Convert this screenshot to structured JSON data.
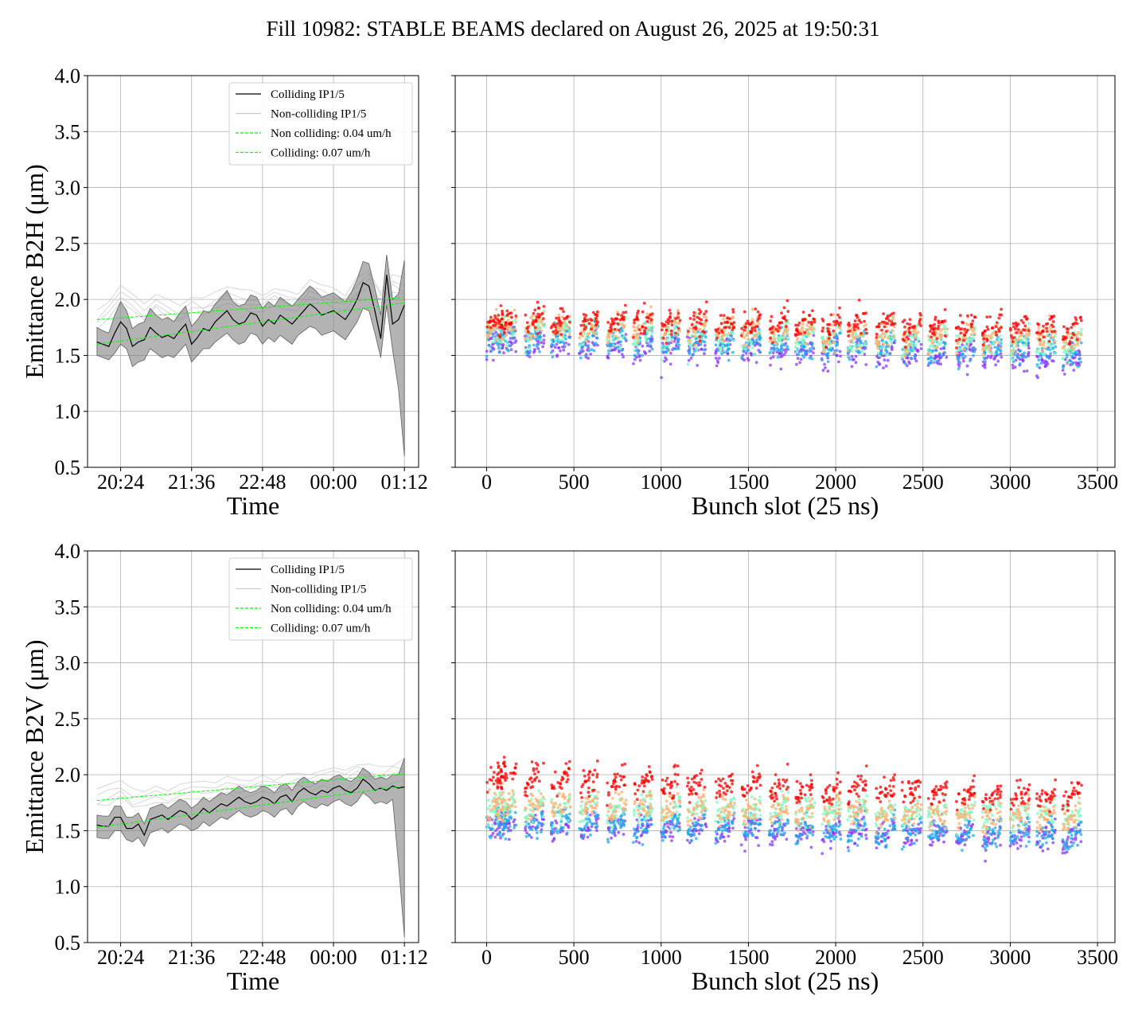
{
  "figure": {
    "title": "Fill 10982: STABLE BEAMS declared on August 26, 2025 at 19:50:31"
  },
  "chart_data": [
    {
      "type": "line",
      "panel": "top-left",
      "xlabel": "Time",
      "ylabel": "Emittance B2H (μm)",
      "xticks": [
        "20:24",
        "21:36",
        "22:48",
        "00:00",
        "01:12"
      ],
      "xtick_hours": [
        20.4,
        21.6,
        22.8,
        24.0,
        25.2
      ],
      "xlim_hours": [
        19.84,
        25.44
      ],
      "ylim": [
        0.5,
        4.0
      ],
      "yticks": [
        0.5,
        1.0,
        1.5,
        2.0,
        2.5,
        3.0,
        3.5,
        4.0
      ],
      "grid": true,
      "legend": {
        "placement": "upper right",
        "entries": [
          {
            "label": "Colliding IP1/5",
            "color": "#000000",
            "style": "solid"
          },
          {
            "label": "Non-colliding IP1/5",
            "color": "#cccccc",
            "style": "solid"
          },
          {
            "label": "Non colliding: 0.04 um/h",
            "color": "#00ff00",
            "style": "dashed"
          },
          {
            "label": "Colliding: 0.07 um/h",
            "color": "#00ff00",
            "style": "dashed"
          }
        ]
      },
      "series": [
        {
          "name": "Colliding IP1/5",
          "x_hours": [
            20.0,
            20.1,
            20.2,
            20.3,
            20.4,
            20.5,
            20.6,
            20.7,
            20.8,
            20.9,
            21.0,
            21.1,
            21.2,
            21.3,
            21.4,
            21.5,
            21.6,
            21.7,
            21.8,
            21.9,
            22.0,
            22.1,
            22.2,
            22.3,
            22.4,
            22.5,
            22.6,
            22.7,
            22.8,
            22.9,
            23.0,
            23.1,
            23.2,
            23.3,
            23.4,
            23.5,
            23.6,
            23.7,
            23.8,
            23.9,
            24.0,
            24.1,
            24.2,
            24.3,
            24.4,
            24.5,
            24.6,
            24.7,
            24.8,
            24.9,
            25.0,
            25.1,
            25.2
          ],
          "values": [
            1.62,
            1.6,
            1.58,
            1.7,
            1.8,
            1.74,
            1.58,
            1.62,
            1.64,
            1.75,
            1.7,
            1.66,
            1.68,
            1.65,
            1.72,
            1.78,
            1.6,
            1.66,
            1.74,
            1.72,
            1.8,
            1.85,
            1.9,
            1.82,
            1.78,
            1.8,
            1.88,
            1.86,
            1.76,
            1.82,
            1.78,
            1.86,
            1.82,
            1.78,
            1.84,
            1.9,
            1.96,
            1.92,
            1.86,
            1.88,
            1.9,
            1.86,
            1.82,
            1.9,
            2.0,
            2.15,
            2.12,
            1.9,
            1.65,
            2.22,
            1.78,
            1.82,
            1.95
          ],
          "band_lower": [
            1.5,
            1.48,
            1.46,
            1.52,
            1.6,
            1.56,
            1.4,
            1.44,
            1.46,
            1.56,
            1.52,
            1.48,
            1.5,
            1.48,
            1.54,
            1.6,
            1.44,
            1.5,
            1.56,
            1.56,
            1.62,
            1.66,
            1.7,
            1.64,
            1.6,
            1.62,
            1.7,
            1.68,
            1.6,
            1.66,
            1.62,
            1.68,
            1.64,
            1.6,
            1.68,
            1.72,
            1.76,
            1.74,
            1.68,
            1.7,
            1.72,
            1.68,
            1.64,
            1.72,
            1.8,
            1.92,
            1.9,
            1.7,
            1.48,
            1.95,
            1.55,
            1.2,
            0.6
          ],
          "band_upper": [
            1.75,
            1.72,
            1.7,
            1.86,
            1.98,
            1.9,
            1.74,
            1.78,
            1.8,
            1.92,
            1.86,
            1.82,
            1.84,
            1.8,
            1.88,
            1.94,
            1.76,
            1.82,
            1.9,
            1.88,
            1.96,
            2.02,
            2.08,
            1.98,
            1.94,
            1.96,
            2.04,
            2.02,
            1.92,
            1.98,
            1.94,
            2.02,
            1.98,
            1.94,
            2.0,
            2.06,
            2.12,
            2.08,
            2.02,
            2.04,
            2.06,
            2.02,
            1.98,
            2.06,
            2.18,
            2.34,
            2.32,
            2.1,
            1.86,
            2.4,
            2.0,
            2.05,
            2.35
          ]
        },
        {
          "name": "Non-colliding IP1/5",
          "x_hours": [
            20.0,
            20.2,
            20.4,
            20.6,
            20.8,
            21.0,
            21.2,
            21.4,
            21.6,
            21.8,
            22.0,
            22.2,
            22.4,
            22.6,
            22.8,
            23.0,
            23.2,
            23.4,
            23.6,
            23.8,
            24.0,
            24.2,
            24.4,
            24.6,
            24.8,
            25.0,
            25.2
          ],
          "values": [
            1.8,
            1.92,
            2.05,
            1.95,
            1.88,
            2.0,
            1.92,
            1.86,
            1.95,
            1.92,
            1.98,
            2.05,
            2.0,
            1.98,
            1.96,
            2.04,
            2.0,
            1.96,
            2.08,
            2.05,
            2.02,
            1.98,
            2.1,
            2.2,
            2.0,
            2.15,
            2.1
          ]
        },
        {
          "name": "Non colliding: 0.04 um/h",
          "x_hours": [
            20.0,
            25.2
          ],
          "values": [
            1.82,
            2.02
          ]
        },
        {
          "name": "Colliding: 0.07 um/h",
          "x_hours": [
            20.0,
            25.2
          ],
          "values": [
            1.6,
            1.97
          ]
        }
      ]
    },
    {
      "type": "scatter",
      "panel": "top-right",
      "xlabel": "Bunch slot (25 ns)",
      "xlim": [
        -180,
        3600
      ],
      "ylim": [
        0.5,
        4.0
      ],
      "xticks": [
        0,
        500,
        1000,
        1500,
        2000,
        2500,
        3000,
        3500
      ],
      "yticks": [
        0.5,
        1.0,
        1.5,
        2.0,
        2.5,
        3.0,
        3.5,
        4.0
      ],
      "grid": true,
      "train_starts": [
        0,
        60,
        220,
        370,
        530,
        690,
        840,
        1000,
        1150,
        1310,
        1460,
        1620,
        1770,
        1920,
        2070,
        2230,
        2380,
        2530,
        2690,
        2840,
        3000,
        3150,
        3300
      ],
      "train_length": 110,
      "color_bands": [
        {
          "color": "#ff0000",
          "mean_start": 1.82,
          "mean_end": 1.74
        },
        {
          "color": "#ffb070",
          "mean_start": 1.76,
          "mean_end": 1.66
        },
        {
          "color": "#7ffac0",
          "mean_start": 1.72,
          "mean_end": 1.6
        },
        {
          "color": "#1ea8ee",
          "mean_start": 1.66,
          "mean_end": 1.52
        },
        {
          "color": "#8a3af5",
          "mean_start": 1.62,
          "mean_end": 1.46
        }
      ]
    },
    {
      "type": "line",
      "panel": "bottom-left",
      "xlabel": "Time",
      "ylabel": "Emittance B2V (μm)",
      "xticks": [
        "20:24",
        "21:36",
        "22:48",
        "00:00",
        "01:12"
      ],
      "xtick_hours": [
        20.4,
        21.6,
        22.8,
        24.0,
        25.2
      ],
      "xlim_hours": [
        19.84,
        25.44
      ],
      "ylim": [
        0.5,
        4.0
      ],
      "yticks": [
        0.5,
        1.0,
        1.5,
        2.0,
        2.5,
        3.0,
        3.5,
        4.0
      ],
      "grid": true,
      "legend": {
        "placement": "upper right",
        "entries": [
          {
            "label": "Colliding IP1/5",
            "color": "#000000",
            "style": "solid"
          },
          {
            "label": "Non-colliding IP1/5",
            "color": "#cccccc",
            "style": "solid"
          },
          {
            "label": "Non colliding: 0.04 um/h",
            "color": "#00ff00",
            "style": "dashed"
          },
          {
            "label": "Colliding: 0.07 um/h",
            "color": "#00ff00",
            "style": "dashed"
          }
        ]
      },
      "series": [
        {
          "name": "Colliding IP1/5",
          "x_hours": [
            20.0,
            20.1,
            20.2,
            20.3,
            20.4,
            20.5,
            20.6,
            20.7,
            20.8,
            20.9,
            21.0,
            21.1,
            21.2,
            21.3,
            21.4,
            21.5,
            21.6,
            21.7,
            21.8,
            21.9,
            22.0,
            22.1,
            22.2,
            22.3,
            22.4,
            22.5,
            22.6,
            22.7,
            22.8,
            22.9,
            23.0,
            23.1,
            23.2,
            23.3,
            23.4,
            23.5,
            23.6,
            23.7,
            23.8,
            23.9,
            24.0,
            24.1,
            24.2,
            24.3,
            24.4,
            24.5,
            24.6,
            24.7,
            24.8,
            24.9,
            25.0,
            25.1,
            25.2
          ],
          "values": [
            1.55,
            1.54,
            1.54,
            1.62,
            1.62,
            1.52,
            1.52,
            1.56,
            1.46,
            1.6,
            1.62,
            1.64,
            1.6,
            1.64,
            1.68,
            1.66,
            1.6,
            1.64,
            1.7,
            1.66,
            1.7,
            1.74,
            1.72,
            1.76,
            1.8,
            1.76,
            1.74,
            1.76,
            1.8,
            1.78,
            1.74,
            1.8,
            1.82,
            1.76,
            1.84,
            1.88,
            1.84,
            1.82,
            1.86,
            1.84,
            1.88,
            1.9,
            1.86,
            1.84,
            1.88,
            1.96,
            1.92,
            1.86,
            1.88,
            1.86,
            1.9,
            1.88,
            1.89
          ],
          "band_lower": [
            1.44,
            1.43,
            1.43,
            1.5,
            1.5,
            1.42,
            1.4,
            1.44,
            1.36,
            1.48,
            1.5,
            1.52,
            1.48,
            1.52,
            1.56,
            1.54,
            1.5,
            1.52,
            1.58,
            1.54,
            1.58,
            1.62,
            1.6,
            1.64,
            1.68,
            1.64,
            1.62,
            1.64,
            1.68,
            1.66,
            1.62,
            1.68,
            1.7,
            1.64,
            1.72,
            1.76,
            1.72,
            1.7,
            1.74,
            1.72,
            1.76,
            1.78,
            1.74,
            1.72,
            1.76,
            1.84,
            1.8,
            1.74,
            1.76,
            1.74,
            1.78,
            1.2,
            0.55
          ],
          "band_upper": [
            1.64,
            1.63,
            1.63,
            1.72,
            1.72,
            1.62,
            1.62,
            1.66,
            1.56,
            1.7,
            1.72,
            1.74,
            1.7,
            1.74,
            1.78,
            1.76,
            1.7,
            1.74,
            1.8,
            1.76,
            1.8,
            1.84,
            1.82,
            1.86,
            1.9,
            1.86,
            1.84,
            1.86,
            1.9,
            1.88,
            1.84,
            1.9,
            1.92,
            1.86,
            1.94,
            1.98,
            1.94,
            1.92,
            1.96,
            1.94,
            1.98,
            2.0,
            1.96,
            1.94,
            1.98,
            2.06,
            2.02,
            1.96,
            1.98,
            1.96,
            2.0,
            2.0,
            2.15
          ]
        },
        {
          "name": "Non-colliding IP1/5",
          "x_hours": [
            20.0,
            20.2,
            20.4,
            20.6,
            20.8,
            21.0,
            21.2,
            21.4,
            21.6,
            21.8,
            22.0,
            22.2,
            22.4,
            22.6,
            22.8,
            23.0,
            23.2,
            23.4,
            23.6,
            23.8,
            24.0,
            24.2,
            24.4,
            24.6,
            24.8,
            25.0,
            25.2
          ],
          "values": [
            1.78,
            1.82,
            1.86,
            1.78,
            1.8,
            1.84,
            1.8,
            1.84,
            1.86,
            1.84,
            1.88,
            1.9,
            1.88,
            1.9,
            1.94,
            1.9,
            1.92,
            1.96,
            1.94,
            1.96,
            1.98,
            1.96,
            2.04,
            2.02,
            1.98,
            2.02,
            2.05
          ]
        },
        {
          "name": "Non colliding: 0.04 um/h",
          "x_hours": [
            20.0,
            25.2
          ],
          "values": [
            1.77,
            2.01
          ]
        },
        {
          "name": "Colliding: 0.07 um/h",
          "x_hours": [
            20.0,
            25.2
          ],
          "values": [
            1.53,
            1.9
          ]
        }
      ]
    },
    {
      "type": "scatter",
      "panel": "bottom-right",
      "xlabel": "Bunch slot (25 ns)",
      "xlim": [
        -180,
        3600
      ],
      "ylim": [
        0.5,
        4.0
      ],
      "xticks": [
        0,
        500,
        1000,
        1500,
        2000,
        2500,
        3000,
        3500
      ],
      "yticks": [
        0.5,
        1.0,
        1.5,
        2.0,
        2.5,
        3.0,
        3.5,
        4.0
      ],
      "grid": true,
      "train_starts": [
        0,
        60,
        220,
        370,
        530,
        690,
        840,
        1000,
        1150,
        1310,
        1460,
        1620,
        1770,
        1920,
        2070,
        2230,
        2380,
        2530,
        2690,
        2840,
        3000,
        3150,
        3300
      ],
      "train_length": 110,
      "color_bands": [
        {
          "color": "#ff0000",
          "mean_start": 1.98,
          "mean_end": 1.8
        },
        {
          "color": "#ffb070",
          "mean_start": 1.74,
          "mean_end": 1.62
        },
        {
          "color": "#7ffac0",
          "mean_start": 1.7,
          "mean_end": 1.66
        },
        {
          "color": "#1ea8ee",
          "mean_start": 1.58,
          "mean_end": 1.45
        },
        {
          "color": "#8a3af5",
          "mean_start": 1.56,
          "mean_end": 1.44
        }
      ]
    }
  ]
}
